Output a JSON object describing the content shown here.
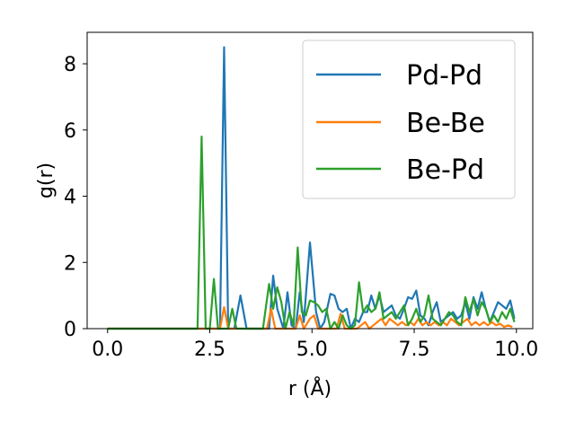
{
  "chart_data": {
    "type": "line",
    "title": "",
    "xlabel": "r (Å)",
    "ylabel": "g(r)",
    "xlim": [
      -0.5,
      10.4
    ],
    "ylim": [
      0,
      8.95
    ],
    "xticks": [
      0.0,
      2.5,
      5.0,
      7.5,
      10.0
    ],
    "xtick_labels": [
      "0.0",
      "2.5",
      "5.0",
      "7.5",
      "10.0"
    ],
    "yticks": [
      0,
      2,
      4,
      6,
      8
    ],
    "ytick_labels": [
      "0",
      "2",
      "4",
      "6",
      "8"
    ],
    "grid": false,
    "legend": "top-right",
    "series": [
      {
        "name": "Pd-Pd",
        "color": "#1f77b4",
        "points": [
          [
            0.0,
            0
          ],
          [
            2.2,
            0
          ],
          [
            2.4,
            0
          ],
          [
            2.6,
            0
          ],
          [
            2.75,
            0
          ],
          [
            2.85,
            8.5
          ],
          [
            2.95,
            0
          ],
          [
            3.1,
            0
          ],
          [
            3.25,
            1.0
          ],
          [
            3.4,
            0
          ],
          [
            3.6,
            0
          ],
          [
            3.8,
            0
          ],
          [
            3.95,
            0
          ],
          [
            4.05,
            1.6
          ],
          [
            4.15,
            0.6
          ],
          [
            4.3,
            0
          ],
          [
            4.4,
            1.1
          ],
          [
            4.5,
            0.1
          ],
          [
            4.6,
            0
          ],
          [
            4.7,
            1.1
          ],
          [
            4.8,
            0.2
          ],
          [
            4.95,
            2.6
          ],
          [
            5.1,
            0.5
          ],
          [
            5.2,
            0
          ],
          [
            5.3,
            0.2
          ],
          [
            5.45,
            1.05
          ],
          [
            5.55,
            1.0
          ],
          [
            5.65,
            0.6
          ],
          [
            5.75,
            0.5
          ],
          [
            5.85,
            0.6
          ],
          [
            5.95,
            0
          ],
          [
            6.05,
            0.3
          ],
          [
            6.15,
            0.2
          ],
          [
            6.25,
            0.5
          ],
          [
            6.35,
            0.5
          ],
          [
            6.45,
            1.0
          ],
          [
            6.55,
            0.6
          ],
          [
            6.65,
            1.0
          ],
          [
            6.75,
            0.5
          ],
          [
            6.85,
            0.6
          ],
          [
            6.95,
            0.7
          ],
          [
            7.05,
            0.4
          ],
          [
            7.15,
            0.3
          ],
          [
            7.25,
            0.6
          ],
          [
            7.35,
            0.95
          ],
          [
            7.45,
            0.9
          ],
          [
            7.55,
            1.15
          ],
          [
            7.65,
            0.4
          ],
          [
            7.75,
            0.3
          ],
          [
            7.85,
            0.1
          ],
          [
            7.95,
            0.5
          ],
          [
            8.05,
            0.8
          ],
          [
            8.15,
            0.2
          ],
          [
            8.25,
            0.3
          ],
          [
            8.35,
            0.4
          ],
          [
            8.45,
            0.5
          ],
          [
            8.55,
            0.3
          ],
          [
            8.65,
            0.4
          ],
          [
            8.75,
            0.8
          ],
          [
            8.85,
            0.3
          ],
          [
            8.95,
            0.95
          ],
          [
            9.05,
            0.6
          ],
          [
            9.15,
            1.1
          ],
          [
            9.25,
            0.6
          ],
          [
            9.35,
            0.2
          ],
          [
            9.45,
            0.5
          ],
          [
            9.55,
            0.8
          ],
          [
            9.65,
            0.7
          ],
          [
            9.75,
            0.6
          ],
          [
            9.85,
            0.85
          ],
          [
            9.95,
            0.3
          ]
        ]
      },
      {
        "name": "Be-Be",
        "color": "#ff7f0e",
        "points": [
          [
            0.0,
            0
          ],
          [
            2.6,
            0
          ],
          [
            2.75,
            0
          ],
          [
            2.85,
            0.65
          ],
          [
            2.95,
            0
          ],
          [
            3.5,
            0
          ],
          [
            3.9,
            0
          ],
          [
            4.0,
            0.6
          ],
          [
            4.1,
            0
          ],
          [
            4.4,
            0
          ],
          [
            4.6,
            0
          ],
          [
            4.7,
            0.4
          ],
          [
            4.8,
            0
          ],
          [
            4.95,
            0.3
          ],
          [
            5.05,
            0.4
          ],
          [
            5.15,
            0
          ],
          [
            5.6,
            0
          ],
          [
            5.7,
            0.45
          ],
          [
            5.8,
            0
          ],
          [
            6.1,
            0
          ],
          [
            6.2,
            0.1
          ],
          [
            6.3,
            0.2
          ],
          [
            6.4,
            0
          ],
          [
            6.5,
            0.1
          ],
          [
            6.6,
            0.2
          ],
          [
            6.7,
            0.3
          ],
          [
            6.8,
            0.1
          ],
          [
            6.9,
            0.3
          ],
          [
            7.0,
            0.2
          ],
          [
            7.1,
            0.1
          ],
          [
            7.2,
            0.2
          ],
          [
            7.3,
            0.1
          ],
          [
            7.4,
            0.2
          ],
          [
            7.5,
            0.1
          ],
          [
            7.6,
            0.3
          ],
          [
            7.7,
            0.1
          ],
          [
            7.8,
            0.2
          ],
          [
            7.9,
            0.1
          ],
          [
            8.0,
            0.2
          ],
          [
            8.1,
            0.1
          ],
          [
            8.2,
            0.2
          ],
          [
            8.3,
            0.1
          ],
          [
            8.4,
            0.3
          ],
          [
            8.5,
            0.2
          ],
          [
            8.6,
            0.1
          ],
          [
            8.7,
            0.2
          ],
          [
            8.8,
            0.3
          ],
          [
            8.9,
            0.1
          ],
          [
            9.0,
            0.2
          ],
          [
            9.1,
            0.1
          ],
          [
            9.2,
            0.2
          ],
          [
            9.3,
            0.1
          ],
          [
            9.4,
            0.2
          ],
          [
            9.5,
            0.1
          ],
          [
            9.6,
            0.15
          ],
          [
            9.7,
            0.05
          ],
          [
            9.8,
            0.1
          ],
          [
            9.9,
            0.05
          ]
        ]
      },
      {
        "name": "Be-Pd",
        "color": "#2ca02c",
        "points": [
          [
            0.0,
            0
          ],
          [
            2.1,
            0
          ],
          [
            2.2,
            0
          ],
          [
            2.3,
            5.8
          ],
          [
            2.4,
            0
          ],
          [
            2.5,
            0
          ],
          [
            2.6,
            1.5
          ],
          [
            2.7,
            0
          ],
          [
            2.85,
            0
          ],
          [
            2.95,
            0
          ],
          [
            3.05,
            0.6
          ],
          [
            3.15,
            0
          ],
          [
            3.5,
            0
          ],
          [
            3.8,
            0
          ],
          [
            3.95,
            1.35
          ],
          [
            4.05,
            0.6
          ],
          [
            4.15,
            1.25
          ],
          [
            4.25,
            0.8
          ],
          [
            4.35,
            0
          ],
          [
            4.45,
            0.5
          ],
          [
            4.55,
            0.1
          ],
          [
            4.65,
            2.45
          ],
          [
            4.75,
            0.5
          ],
          [
            4.85,
            0.4
          ],
          [
            4.95,
            0.85
          ],
          [
            5.05,
            0.8
          ],
          [
            5.15,
            0.7
          ],
          [
            5.25,
            0.5
          ],
          [
            5.35,
            0.6
          ],
          [
            5.45,
            0
          ],
          [
            5.55,
            0.2
          ],
          [
            5.65,
            0
          ],
          [
            5.75,
            0.4
          ],
          [
            5.85,
            0.1
          ],
          [
            5.95,
            0
          ],
          [
            6.05,
            0.1
          ],
          [
            6.15,
            1.4
          ],
          [
            6.25,
            0.5
          ],
          [
            6.35,
            0.7
          ],
          [
            6.45,
            0.5
          ],
          [
            6.55,
            0.6
          ],
          [
            6.65,
            1.1
          ],
          [
            6.75,
            0.3
          ],
          [
            6.85,
            0.4
          ],
          [
            6.95,
            0.5
          ],
          [
            7.05,
            0.3
          ],
          [
            7.15,
            0.5
          ],
          [
            7.25,
            0.7
          ],
          [
            7.35,
            0.1
          ],
          [
            7.45,
            0.3
          ],
          [
            7.55,
            0.6
          ],
          [
            7.65,
            0.2
          ],
          [
            7.75,
            0.4
          ],
          [
            7.85,
            1.0
          ],
          [
            7.95,
            0.3
          ],
          [
            8.05,
            0.2
          ],
          [
            8.15,
            0.1
          ],
          [
            8.25,
            0.3
          ],
          [
            8.35,
            0.5
          ],
          [
            8.45,
            0.4
          ],
          [
            8.55,
            0.2
          ],
          [
            8.65,
            0.1
          ],
          [
            8.75,
            0.95
          ],
          [
            8.85,
            0.5
          ],
          [
            8.95,
            0.9
          ],
          [
            9.05,
            0.4
          ],
          [
            9.15,
            0.8
          ],
          [
            9.25,
            0.6
          ],
          [
            9.35,
            0.2
          ],
          [
            9.45,
            0.4
          ],
          [
            9.55,
            0.2
          ],
          [
            9.65,
            0.5
          ],
          [
            9.75,
            0.3
          ],
          [
            9.85,
            0.6
          ],
          [
            9.95,
            0.2
          ]
        ]
      }
    ]
  }
}
